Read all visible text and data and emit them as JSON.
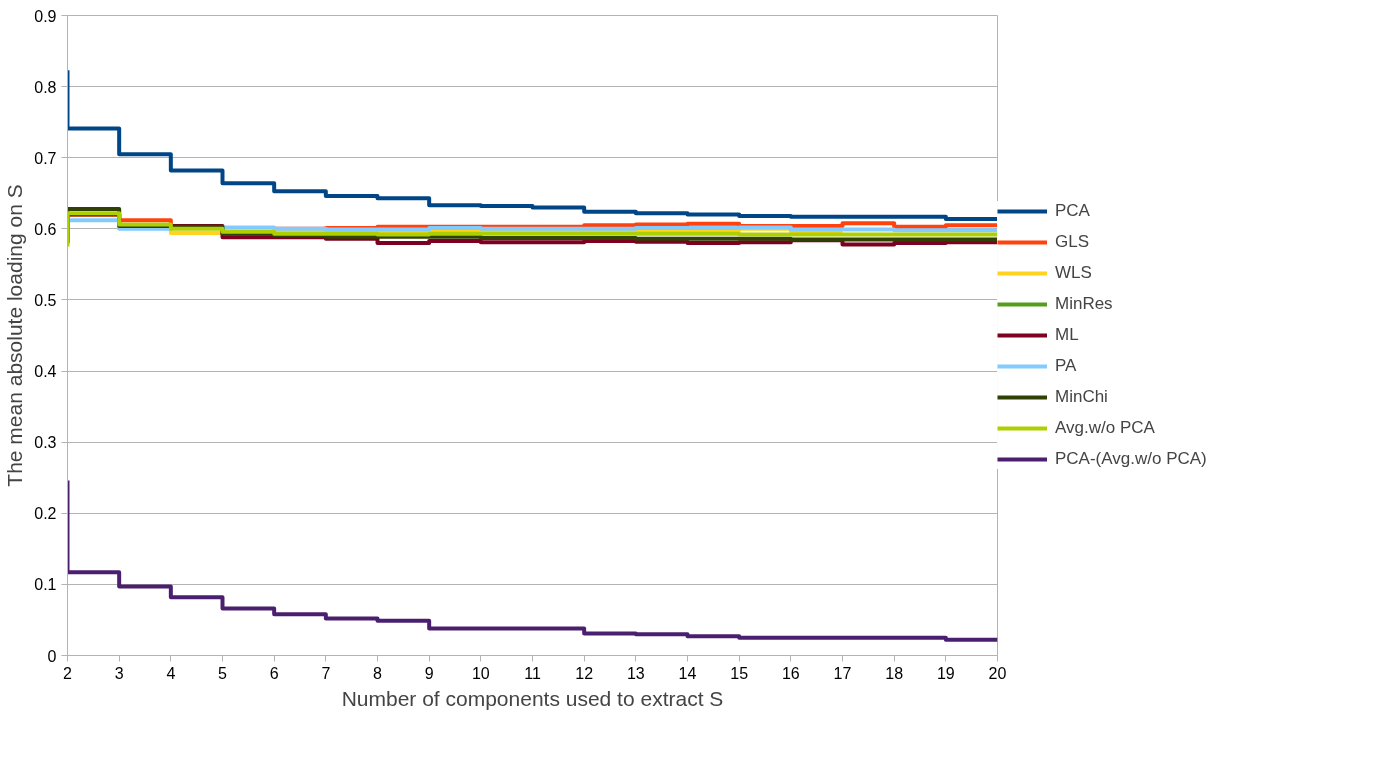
{
  "chart_data": {
    "type": "step",
    "xlabel": "Number of components used to extract S",
    "ylabel": "The mean absolute loading on S",
    "x": [
      2,
      3,
      4,
      5,
      6,
      7,
      8,
      9,
      10,
      11,
      12,
      13,
      14,
      15,
      16,
      17,
      18,
      19,
      20
    ],
    "xlim": [
      2,
      20
    ],
    "xticks": [
      2,
      3,
      4,
      5,
      6,
      7,
      8,
      9,
      10,
      11,
      12,
      13,
      14,
      15,
      16,
      17,
      18,
      19,
      20
    ],
    "ylim": [
      0,
      0.9
    ],
    "yticks": [
      0,
      0.1,
      0.2,
      0.3,
      0.4,
      0.5,
      0.6,
      0.7,
      0.8,
      0.9
    ],
    "grid": "y",
    "legend": "right",
    "line_style": "solid",
    "marker": "none",
    "series": [
      {
        "name": "PCA",
        "color": "#004586",
        "values": [
          0.823,
          0.741,
          0.705,
          0.682,
          0.664,
          0.653,
          0.646,
          0.643,
          0.633,
          0.632,
          0.63,
          0.624,
          0.622,
          0.62,
          0.618,
          0.617,
          0.617,
          0.617,
          0.614
        ]
      },
      {
        "name": "GLS",
        "color": "#ff420e",
        "values": [
          0.58,
          0.62,
          0.612,
          0.604,
          null,
          0.6,
          0.601,
          0.603,
          0.603,
          0.603,
          0.603,
          0.605,
          0.606,
          0.607,
          0.604,
          0.604,
          0.608,
          0.603,
          0.605
        ]
      },
      {
        "name": "WLS",
        "color": "#ffd320",
        "values": [
          0.58,
          0.62,
          0.605,
          0.594,
          0.596,
          0.596,
          0.596,
          0.596,
          0.597,
          0.598,
          0.598,
          0.597,
          0.597,
          0.598,
          0.6,
          0.596,
          null,
          null,
          null
        ]
      },
      {
        "name": "MinRes",
        "color": "#579d1c",
        "values": [
          null,
          null,
          null,
          null,
          null,
          null,
          null,
          null,
          null,
          null,
          null,
          null,
          null,
          null,
          null,
          null,
          null,
          null,
          null
        ]
      },
      {
        "name": "ML",
        "color": "#7e0021",
        "values": [
          0.62,
          0.62,
          0.605,
          0.604,
          0.588,
          0.588,
          0.586,
          0.58,
          0.583,
          0.581,
          0.581,
          0.583,
          0.582,
          0.58,
          0.581,
          0.584,
          0.578,
          0.58,
          0.581
        ]
      },
      {
        "name": "PA",
        "color": "#83caff",
        "values": [
          0.612,
          0.612,
          0.6,
          0.601,
          0.602,
          0.6,
          0.599,
          0.599,
          0.601,
          0.6,
          0.6,
          0.6,
          0.601,
          0.601,
          0.602,
          0.599,
          0.599,
          0.598,
          0.598
        ]
      },
      {
        "name": "MinChi",
        "color": "#314004",
        "values": [
          0.58,
          0.628,
          0.604,
          0.603,
          0.593,
          0.591,
          0.589,
          0.589,
          0.589,
          0.587,
          0.587,
          0.587,
          0.586,
          0.586,
          0.586,
          0.585,
          0.585,
          0.585,
          0.585
        ]
      },
      {
        "name": "Avg.w/o PCA",
        "color": "#aecf00",
        "values": [
          0.575,
          0.622,
          0.606,
          0.6,
          0.596,
          0.593,
          0.593,
          0.592,
          0.593,
          0.593,
          0.593,
          0.593,
          0.593,
          0.593,
          0.592,
          0.592,
          0.592,
          0.592,
          0.592
        ]
      },
      {
        "name": "PCA-(Avg.w/o PCA)",
        "color": "#4b1f6f",
        "values": [
          0.246,
          0.117,
          0.097,
          0.082,
          0.066,
          0.058,
          0.052,
          0.049,
          0.038,
          0.038,
          0.038,
          0.031,
          0.03,
          0.027,
          0.025,
          0.025,
          0.025,
          0.025,
          0.022
        ]
      }
    ]
  }
}
